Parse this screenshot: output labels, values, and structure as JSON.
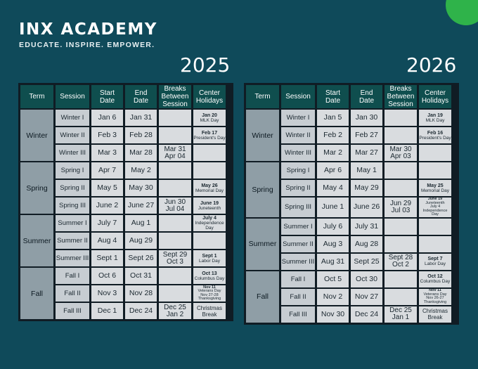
{
  "brand": {
    "name": "INX ACADEMY",
    "tagline": "EDUCATE. INSPIRE. EMPOWER.",
    "accent_color": "#2fb34a",
    "background_color": "#0f4a5a"
  },
  "headers": [
    "Term",
    "Session",
    "Start\nDate",
    "End\nDate",
    "Breaks\nBetween\nSession",
    "Center\nHolidays"
  ],
  "calendars": [
    {
      "year": "2025",
      "terms": [
        {
          "name": "Winter",
          "rows": [
            {
              "session": "Winter I",
              "start": "Jan 6",
              "end": "Jan 31",
              "break": "",
              "holiday_name": "Jan 20",
              "holiday_note": "MLK Day"
            },
            {
              "session": "Winter II",
              "start": "Feb 3",
              "end": "Feb 28",
              "break": "",
              "holiday_name": "Feb 17",
              "holiday_note": "President's Day"
            },
            {
              "session": "Winter III",
              "start": "Mar 3",
              "end": "Mar 28",
              "break": "Mar 31\nApr 04",
              "holiday_name": "",
              "holiday_note": ""
            }
          ]
        },
        {
          "name": "Spring",
          "rows": [
            {
              "session": "Spring I",
              "start": "Apr 7",
              "end": "May 2",
              "break": "",
              "holiday_name": "",
              "holiday_note": ""
            },
            {
              "session": "Spring II",
              "start": "May 5",
              "end": "May 30",
              "break": "",
              "holiday_name": "May 26",
              "holiday_note": "Memorial Day"
            },
            {
              "session": "Spring III",
              "start": "June 2",
              "end": "June 27",
              "break": "Jun 30\nJul 04",
              "holiday_name": "June 19",
              "holiday_note": "Juneteenth"
            }
          ]
        },
        {
          "name": "Summer",
          "rows": [
            {
              "session": "Summer I",
              "start": "July 7",
              "end": "Aug 1",
              "break": "",
              "holiday_name": "July 4",
              "holiday_note": "Independence Day"
            },
            {
              "session": "Summer II",
              "start": "Aug 4",
              "end": "Aug 29",
              "break": "",
              "holiday_name": "",
              "holiday_note": ""
            },
            {
              "session": "Summer III",
              "start": "Sept 1",
              "end": "Sept 26",
              "break": "Sept 29\nOct 3",
              "holiday_name": "Sept 1",
              "holiday_note": "Labor Day"
            }
          ]
        },
        {
          "name": "Fall",
          "rows": [
            {
              "session": "Fall I",
              "start": "Oct 6",
              "end": "Oct 31",
              "break": "",
              "holiday_name": "Oct 13",
              "holiday_note": "Columbus Day"
            },
            {
              "session": "Fall II",
              "start": "Nov 3",
              "end": "Nov 28",
              "break": "",
              "holiday_name": "Nov 11",
              "holiday_note": "Veterans Day\nNov 27-28\nThanksgiving"
            },
            {
              "session": "Fall III",
              "start": "Dec 1",
              "end": "Dec 24",
              "break": "Dec 25\nJan 2",
              "holiday_name": "Christmas",
              "holiday_note": "Break"
            }
          ]
        }
      ]
    },
    {
      "year": "2026",
      "terms": [
        {
          "name": "Winter",
          "rows": [
            {
              "session": "Winter I",
              "start": "Jan 5",
              "end": "Jan 30",
              "break": "",
              "holiday_name": "Jan 19",
              "holiday_note": "MLK Day"
            },
            {
              "session": "Winter II",
              "start": "Feb 2",
              "end": "Feb 27",
              "break": "",
              "holiday_name": "Feb 16",
              "holiday_note": "President's Day"
            },
            {
              "session": "Winter III",
              "start": "Mar 2",
              "end": "Mar 27",
              "break": "Mar 30\nApr 03",
              "holiday_name": "",
              "holiday_note": ""
            }
          ]
        },
        {
          "name": "Spring",
          "rows": [
            {
              "session": "Spring I",
              "start": "Apr 6",
              "end": "May 1",
              "break": "",
              "holiday_name": "",
              "holiday_note": ""
            },
            {
              "session": "Spring II",
              "start": "May 4",
              "end": "May 29",
              "break": "",
              "holiday_name": "May 25",
              "holiday_note": "Memorial Day"
            },
            {
              "session": "Spring III",
              "start": "June 1",
              "end": "June 26",
              "break": "Jun 29\nJul 03",
              "holiday_name": "June 19",
              "holiday_note": "Juneteenth\nJuly 4\nIndependence Day"
            }
          ]
        },
        {
          "name": "Summer",
          "rows": [
            {
              "session": "Summer I",
              "start": "July 6",
              "end": "July 31",
              "break": "",
              "holiday_name": "",
              "holiday_note": ""
            },
            {
              "session": "Summer II",
              "start": "Aug 3",
              "end": "Aug 28",
              "break": "",
              "holiday_name": "",
              "holiday_note": ""
            },
            {
              "session": "Summer III",
              "start": "Aug 31",
              "end": "Sept 25",
              "break": "Sept 28\nOct 2",
              "holiday_name": "Sept 7",
              "holiday_note": "Labor Day"
            }
          ]
        },
        {
          "name": "Fall",
          "rows": [
            {
              "session": "Fall I",
              "start": "Oct 5",
              "end": "Oct 30",
              "break": "",
              "holiday_name": "Oct 12",
              "holiday_note": "Columbus Day"
            },
            {
              "session": "Fall II",
              "start": "Nov 2",
              "end": "Nov 27",
              "break": "",
              "holiday_name": "Nov 11",
              "holiday_note": "Veterans Day\nNov 26-27\nThanksgiving"
            },
            {
              "session": "Fall III",
              "start": "Nov 30",
              "end": "Dec 24",
              "break": "Dec 25\nJan 1",
              "holiday_name": "Christmas",
              "holiday_note": "Break"
            }
          ]
        }
      ]
    }
  ]
}
